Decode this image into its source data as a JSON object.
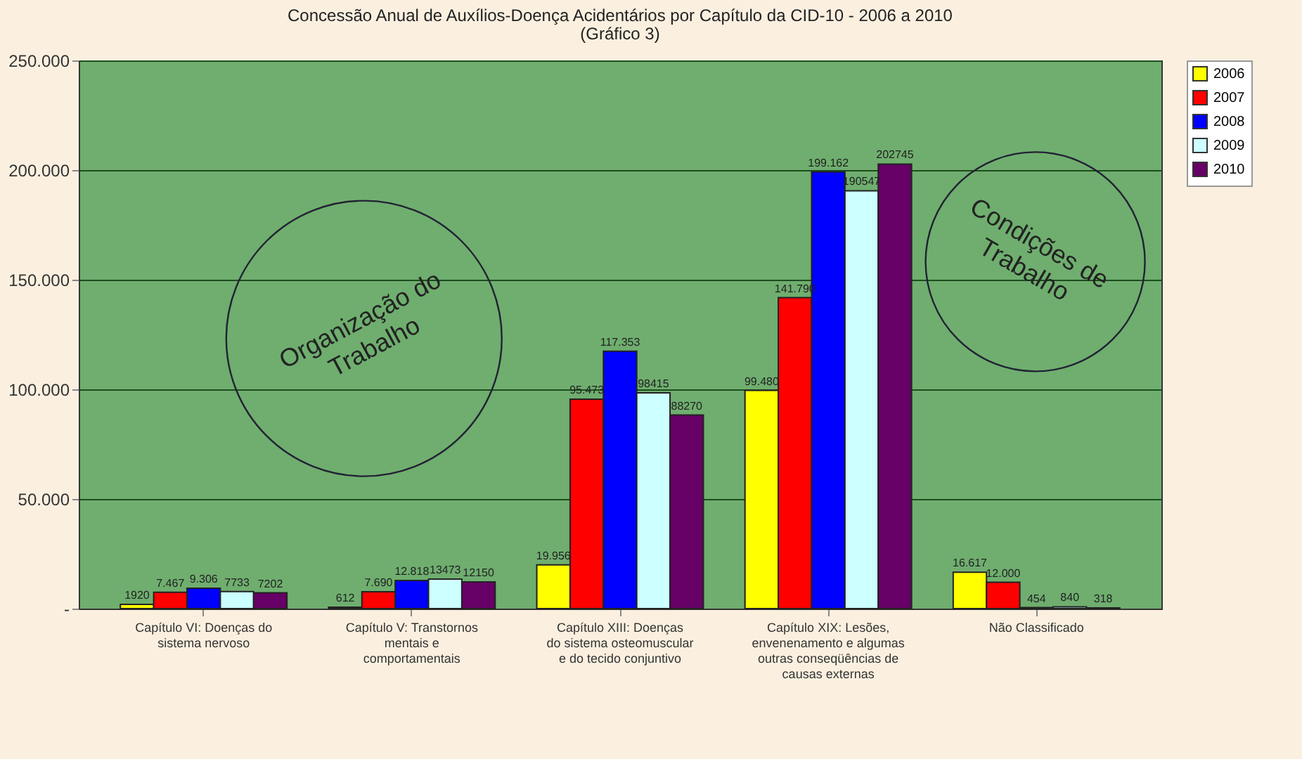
{
  "chart_data": {
    "type": "bar",
    "title": "Concessão Anual de Auxílios-Doença Acidentários por Capítulo da CID-10 - 2006 a 2010",
    "subtitle": "(Gráfico 3)",
    "categories": [
      "Capítulo VI: Doenças do sistema nervoso",
      "Capítulo V: Transtornos mentais e comportamentais",
      "Capítulo XIII: Doenças do sistema osteomuscular e do tecido conjuntivo",
      "Capítulo XIX: Lesões, envenenamento e algumas outras conseqüências de causas externas",
      "Não Classificado"
    ],
    "series": [
      {
        "name": "2006",
        "color": "#ffff00",
        "values": [
          1920,
          612,
          19956,
          99480,
          16617
        ],
        "value_labels": [
          "1920",
          "612",
          "19.956",
          "99.480",
          "16.617"
        ]
      },
      {
        "name": "2007",
        "color": "#ff0000",
        "values": [
          7467,
          7690,
          95473,
          141790,
          12000
        ],
        "value_labels": [
          "7.467",
          "7.690",
          "95.473",
          "141.790",
          "12.000"
        ]
      },
      {
        "name": "2008",
        "color": "#0000ff",
        "values": [
          9306,
          12818,
          117353,
          199162,
          454
        ],
        "value_labels": [
          "9.306",
          "12.818",
          "117.353",
          "199.162",
          "454"
        ]
      },
      {
        "name": "2009",
        "color": "#ccffff",
        "values": [
          7733,
          13473,
          98415,
          190547,
          840
        ],
        "value_labels": [
          "7733",
          "13473",
          "98415",
          "190547",
          "840"
        ]
      },
      {
        "name": "2010",
        "color": "#660066",
        "values": [
          7202,
          12150,
          88270,
          202745,
          318
        ],
        "value_labels": [
          "7202",
          "12150",
          "88270",
          "202745",
          "318"
        ]
      }
    ],
    "ylim": [
      0,
      250000
    ],
    "yticks": [
      {
        "value": 0,
        "label": "-"
      },
      {
        "value": 50000,
        "label": "50.000"
      },
      {
        "value": 100000,
        "label": "100.000"
      },
      {
        "value": 150000,
        "label": "150.000"
      },
      {
        "value": 200000,
        "label": "200.000"
      },
      {
        "value": 250000,
        "label": "250.000"
      }
    ],
    "grid": "y",
    "legend": "right",
    "annotations": [
      "Organização do Trabalho",
      "Condições de Trabalho"
    ]
  }
}
